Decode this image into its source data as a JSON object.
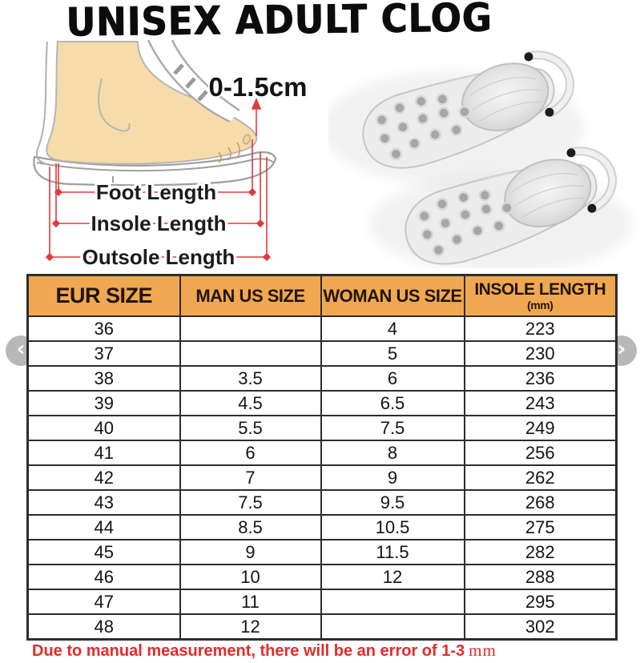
{
  "title": "UNISEX ADULT CLOG",
  "diagram": {
    "tolerance_label": "0-1.5cm",
    "foot_length_label": "Foot Length",
    "insole_length_label": "Insole Length",
    "outsole_length_label": "Outsole Length"
  },
  "carousel": {
    "prev_icon": "‹",
    "next_icon": "›"
  },
  "table": {
    "headers": [
      "EUR SIZE",
      "MAN US SIZE",
      "WOMAN US SIZE",
      "INSOLE LENGTH"
    ],
    "insole_unit_label": "(mm)",
    "rows": [
      [
        "36",
        "",
        "4",
        "223"
      ],
      [
        "37",
        "",
        "5",
        "230"
      ],
      [
        "38",
        "3.5",
        "6",
        "236"
      ],
      [
        "39",
        "4.5",
        "6.5",
        "243"
      ],
      [
        "40",
        "5.5",
        "7.5",
        "249"
      ],
      [
        "41",
        "6",
        "8",
        "256"
      ],
      [
        "42",
        "7",
        "9",
        "262"
      ],
      [
        "43",
        "7.5",
        "9.5",
        "268"
      ],
      [
        "44",
        "8.5",
        "10.5",
        "275"
      ],
      [
        "45",
        "9",
        "11.5",
        "282"
      ],
      [
        "46",
        "10",
        "12",
        "288"
      ],
      [
        "47",
        "11",
        "",
        "295"
      ],
      [
        "48",
        "12",
        "",
        "302"
      ]
    ]
  },
  "footer": {
    "note_text": "Due to manual measurement, there will be an error of 1-3",
    "note_unit": "mm"
  },
  "colors": {
    "header_bg": "#efa851",
    "table_border": "#2d2d2d",
    "note_red": "#e32b2b",
    "measure_red": "#e23b3b",
    "skin": "#f6dcab"
  }
}
